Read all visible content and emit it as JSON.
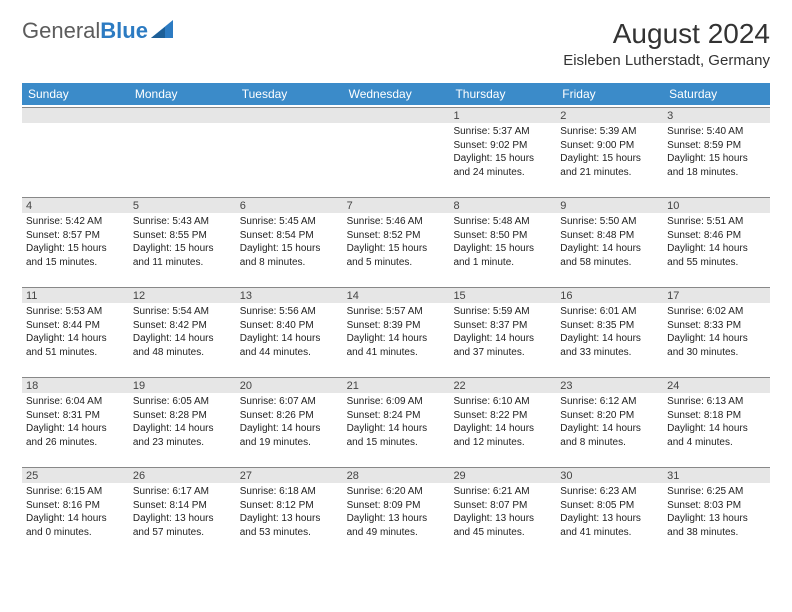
{
  "logo": {
    "general": "General",
    "blue": "Blue"
  },
  "header": {
    "title": "August 2024",
    "location": "Eisleben Lutherstadt, Germany"
  },
  "colors": {
    "header_bg": "#3b8bc9",
    "header_fg": "#ffffff",
    "daynum_bg": "#e6e6e6",
    "daynum_border": "#888888",
    "body_text": "#222222",
    "title_text": "#333333",
    "logo_gray": "#5c5c5c",
    "logo_blue": "#2c7bc2",
    "background": "#ffffff"
  },
  "typography": {
    "title_fontsize": 28,
    "location_fontsize": 15,
    "logo_fontsize": 22,
    "dayheader_fontsize": 12,
    "daynum_fontsize": 11,
    "detail_fontsize": 10
  },
  "days_of_week": [
    "Sunday",
    "Monday",
    "Tuesday",
    "Wednesday",
    "Thursday",
    "Friday",
    "Saturday"
  ],
  "weeks": [
    [
      null,
      null,
      null,
      null,
      {
        "n": "1",
        "sr": "Sunrise: 5:37 AM",
        "ss": "Sunset: 9:02 PM",
        "dl": "Daylight: 15 hours and 24 minutes."
      },
      {
        "n": "2",
        "sr": "Sunrise: 5:39 AM",
        "ss": "Sunset: 9:00 PM",
        "dl": "Daylight: 15 hours and 21 minutes."
      },
      {
        "n": "3",
        "sr": "Sunrise: 5:40 AM",
        "ss": "Sunset: 8:59 PM",
        "dl": "Daylight: 15 hours and 18 minutes."
      }
    ],
    [
      {
        "n": "4",
        "sr": "Sunrise: 5:42 AM",
        "ss": "Sunset: 8:57 PM",
        "dl": "Daylight: 15 hours and 15 minutes."
      },
      {
        "n": "5",
        "sr": "Sunrise: 5:43 AM",
        "ss": "Sunset: 8:55 PM",
        "dl": "Daylight: 15 hours and 11 minutes."
      },
      {
        "n": "6",
        "sr": "Sunrise: 5:45 AM",
        "ss": "Sunset: 8:54 PM",
        "dl": "Daylight: 15 hours and 8 minutes."
      },
      {
        "n": "7",
        "sr": "Sunrise: 5:46 AM",
        "ss": "Sunset: 8:52 PM",
        "dl": "Daylight: 15 hours and 5 minutes."
      },
      {
        "n": "8",
        "sr": "Sunrise: 5:48 AM",
        "ss": "Sunset: 8:50 PM",
        "dl": "Daylight: 15 hours and 1 minute."
      },
      {
        "n": "9",
        "sr": "Sunrise: 5:50 AM",
        "ss": "Sunset: 8:48 PM",
        "dl": "Daylight: 14 hours and 58 minutes."
      },
      {
        "n": "10",
        "sr": "Sunrise: 5:51 AM",
        "ss": "Sunset: 8:46 PM",
        "dl": "Daylight: 14 hours and 55 minutes."
      }
    ],
    [
      {
        "n": "11",
        "sr": "Sunrise: 5:53 AM",
        "ss": "Sunset: 8:44 PM",
        "dl": "Daylight: 14 hours and 51 minutes."
      },
      {
        "n": "12",
        "sr": "Sunrise: 5:54 AM",
        "ss": "Sunset: 8:42 PM",
        "dl": "Daylight: 14 hours and 48 minutes."
      },
      {
        "n": "13",
        "sr": "Sunrise: 5:56 AM",
        "ss": "Sunset: 8:40 PM",
        "dl": "Daylight: 14 hours and 44 minutes."
      },
      {
        "n": "14",
        "sr": "Sunrise: 5:57 AM",
        "ss": "Sunset: 8:39 PM",
        "dl": "Daylight: 14 hours and 41 minutes."
      },
      {
        "n": "15",
        "sr": "Sunrise: 5:59 AM",
        "ss": "Sunset: 8:37 PM",
        "dl": "Daylight: 14 hours and 37 minutes."
      },
      {
        "n": "16",
        "sr": "Sunrise: 6:01 AM",
        "ss": "Sunset: 8:35 PM",
        "dl": "Daylight: 14 hours and 33 minutes."
      },
      {
        "n": "17",
        "sr": "Sunrise: 6:02 AM",
        "ss": "Sunset: 8:33 PM",
        "dl": "Daylight: 14 hours and 30 minutes."
      }
    ],
    [
      {
        "n": "18",
        "sr": "Sunrise: 6:04 AM",
        "ss": "Sunset: 8:31 PM",
        "dl": "Daylight: 14 hours and 26 minutes."
      },
      {
        "n": "19",
        "sr": "Sunrise: 6:05 AM",
        "ss": "Sunset: 8:28 PM",
        "dl": "Daylight: 14 hours and 23 minutes."
      },
      {
        "n": "20",
        "sr": "Sunrise: 6:07 AM",
        "ss": "Sunset: 8:26 PM",
        "dl": "Daylight: 14 hours and 19 minutes."
      },
      {
        "n": "21",
        "sr": "Sunrise: 6:09 AM",
        "ss": "Sunset: 8:24 PM",
        "dl": "Daylight: 14 hours and 15 minutes."
      },
      {
        "n": "22",
        "sr": "Sunrise: 6:10 AM",
        "ss": "Sunset: 8:22 PM",
        "dl": "Daylight: 14 hours and 12 minutes."
      },
      {
        "n": "23",
        "sr": "Sunrise: 6:12 AM",
        "ss": "Sunset: 8:20 PM",
        "dl": "Daylight: 14 hours and 8 minutes."
      },
      {
        "n": "24",
        "sr": "Sunrise: 6:13 AM",
        "ss": "Sunset: 8:18 PM",
        "dl": "Daylight: 14 hours and 4 minutes."
      }
    ],
    [
      {
        "n": "25",
        "sr": "Sunrise: 6:15 AM",
        "ss": "Sunset: 8:16 PM",
        "dl": "Daylight: 14 hours and 0 minutes."
      },
      {
        "n": "26",
        "sr": "Sunrise: 6:17 AM",
        "ss": "Sunset: 8:14 PM",
        "dl": "Daylight: 13 hours and 57 minutes."
      },
      {
        "n": "27",
        "sr": "Sunrise: 6:18 AM",
        "ss": "Sunset: 8:12 PM",
        "dl": "Daylight: 13 hours and 53 minutes."
      },
      {
        "n": "28",
        "sr": "Sunrise: 6:20 AM",
        "ss": "Sunset: 8:09 PM",
        "dl": "Daylight: 13 hours and 49 minutes."
      },
      {
        "n": "29",
        "sr": "Sunrise: 6:21 AM",
        "ss": "Sunset: 8:07 PM",
        "dl": "Daylight: 13 hours and 45 minutes."
      },
      {
        "n": "30",
        "sr": "Sunrise: 6:23 AM",
        "ss": "Sunset: 8:05 PM",
        "dl": "Daylight: 13 hours and 41 minutes."
      },
      {
        "n": "31",
        "sr": "Sunrise: 6:25 AM",
        "ss": "Sunset: 8:03 PM",
        "dl": "Daylight: 13 hours and 38 minutes."
      }
    ]
  ]
}
